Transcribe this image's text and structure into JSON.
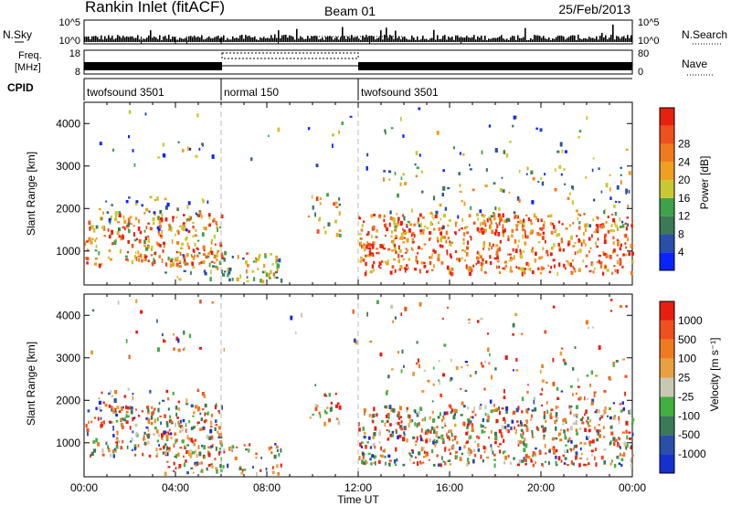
{
  "header": {
    "station": "Rankin Inlet (fitACF)",
    "beam": "Beam 01",
    "date": "25/Feb/2013"
  },
  "nsky_panel": {
    "left_label": "N.Sky",
    "right_label": "N.Search",
    "left_ticks": [
      "10^5",
      "10^0"
    ],
    "right_ticks": [
      "10^5",
      "10^0"
    ]
  },
  "freq_panel": {
    "left_label_line1": "Freq.",
    "left_label_line2": "[MHz]",
    "right_label": "Nave",
    "left_ticks": [
      "18",
      "8"
    ],
    "right_ticks": [
      "80",
      "0"
    ]
  },
  "cpid_panel": {
    "label": "CPID",
    "segments": [
      {
        "name": "twofsound 3501",
        "start_hour": 0,
        "end_hour": 6
      },
      {
        "name": "normal 150",
        "start_hour": 6,
        "end_hour": 12
      },
      {
        "name": "twofsound 3501",
        "start_hour": 12,
        "end_hour": 24
      }
    ]
  },
  "time_axis": {
    "title": "Time UT",
    "ticks": [
      "00:00",
      "04:00",
      "08:00",
      "12:00",
      "16:00",
      "20:00",
      "00:00"
    ]
  },
  "colors": {
    "power": [
      "#0a24ff",
      "#2a4fa8",
      "#3a7a55",
      "#3fa24a",
      "#c8c832",
      "#f0a01e",
      "#f07a1e",
      "#f0501e",
      "#e82010"
    ],
    "velocity": [
      "#1630d0",
      "#2a4fa8",
      "#3a7a55",
      "#42b040",
      "#c8c8b4",
      "#e8a040",
      "#f07a1e",
      "#f0501e",
      "#e81e10"
    ]
  },
  "chart_data": [
    {
      "type": "heatmap",
      "panel": "power",
      "ylabel": "Slant Range [km]",
      "ylim": [
        200,
        4500
      ],
      "yticks": [
        "1000",
        "2000",
        "3000",
        "4000"
      ],
      "xlim": [
        0,
        24
      ],
      "colorbar": {
        "title": "Power [dB]",
        "ticks": [
          "4",
          "8",
          "12",
          "16",
          "20",
          "24",
          "28"
        ]
      }
    },
    {
      "type": "heatmap",
      "panel": "velocity",
      "ylabel": "Slant Range [km]",
      "ylim": [
        200,
        4500
      ],
      "yticks": [
        "1000",
        "2000",
        "3000",
        "4000"
      ],
      "xlim": [
        0,
        24
      ],
      "colorbar": {
        "title": "Velocity [m s⁻¹]",
        "ticks": [
          "1000",
          "500",
          "100",
          "25",
          "-25",
          "-100",
          "-500",
          "-1000"
        ]
      }
    }
  ]
}
